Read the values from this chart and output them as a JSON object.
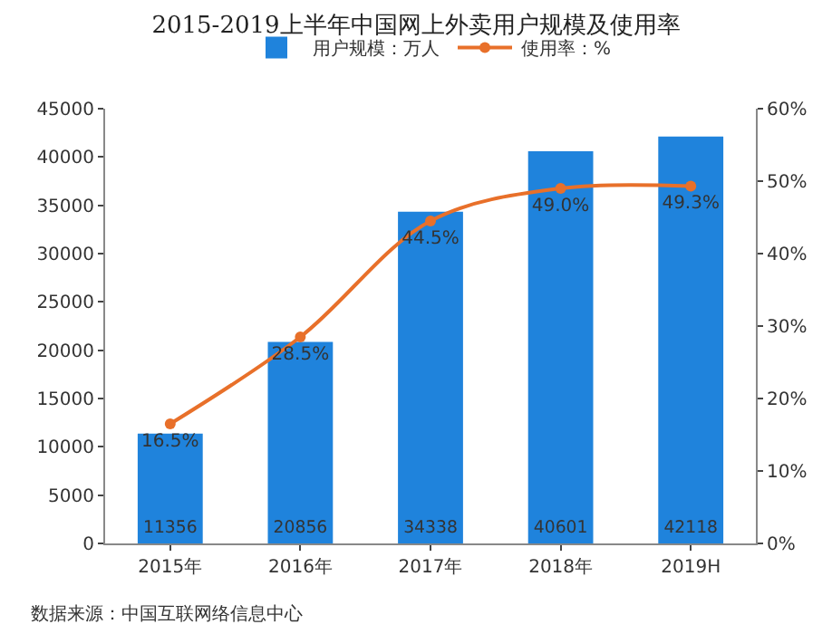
{
  "chart_data": {
    "type": "bar",
    "title": "2015-2019上半年中国网上外卖用户规模及使用率",
    "categories": [
      "2015年",
      "2016年",
      "2017年",
      "2018年",
      "2019H"
    ],
    "series": [
      {
        "name": "用户规模：万人",
        "color": "#1f83dc",
        "values": [
          11356,
          20856,
          34338,
          40601,
          42118
        ],
        "value_labels": [
          "11356",
          "20856",
          "34338",
          "40601",
          "42118"
        ]
      },
      {
        "name": "使用率：%",
        "type": "line",
        "axis": "y2",
        "color": "#e8702a",
        "values": [
          16.5,
          28.5,
          44.5,
          49.0,
          49.3
        ],
        "value_labels": [
          "16.5%",
          "28.5%",
          "44.5%",
          "49.0%",
          "49.3%"
        ]
      }
    ],
    "ylim": [
      0,
      45000
    ],
    "yticks": [
      0,
      5000,
      10000,
      15000,
      20000,
      25000,
      30000,
      35000,
      40000,
      45000
    ],
    "y2lim": [
      0,
      60
    ],
    "y2ticks": [
      {
        "value": 0,
        "label": "0%"
      },
      {
        "value": 10,
        "label": "10%"
      },
      {
        "value": 20,
        "label": "20%"
      },
      {
        "value": 30,
        "label": "30%"
      },
      {
        "value": 40,
        "label": "40%"
      },
      {
        "value": 50,
        "label": "50%"
      },
      {
        "value": 60,
        "label": "60%"
      }
    ],
    "legend": "top",
    "marker": "circle",
    "line_style": "solid",
    "grid": false,
    "annotations": [
      "数据来源：中国互联网络信息中心"
    ]
  }
}
